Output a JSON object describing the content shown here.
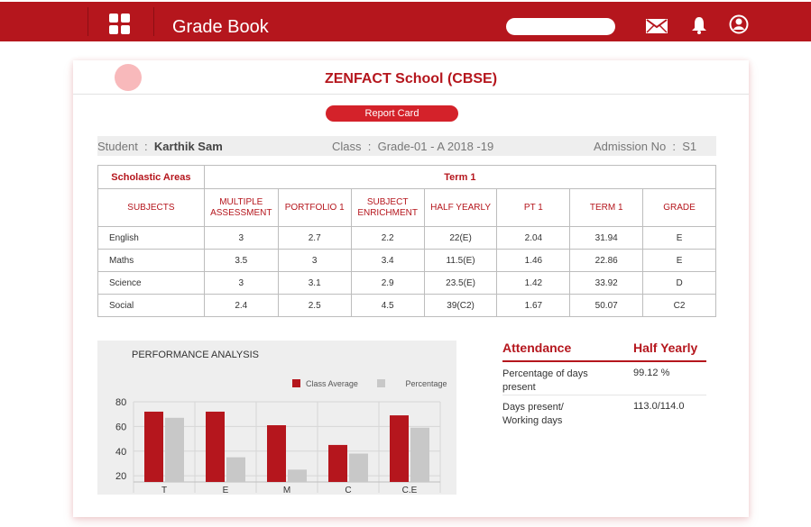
{
  "header": {
    "title": "Grade Book",
    "search_placeholder": "",
    "icons": [
      "grid-icon",
      "mail-icon",
      "bell-icon",
      "user-icon"
    ],
    "colors": {
      "brand": "#b5161d",
      "accent": "#d4222a"
    }
  },
  "school": {
    "name": "ZENFACT School (CBSE)"
  },
  "report_button": "Report Card",
  "student": {
    "student_label": "Student",
    "name": "Karthik Sam",
    "class_label": "Class",
    "class_value": "Grade-01 - A 2018 -19",
    "admission_label": "Admission No",
    "admission_value": "S1"
  },
  "table": {
    "area_label": "Scholastic Areas",
    "term_label": "Term 1",
    "columns": [
      "SUBJECTS",
      "MULTIPLE ASSESSMENT",
      "PORTFOLIO 1",
      "SUBJECT ENRICHMENT",
      "HALF YEARLY",
      "PT 1",
      "TERM 1",
      "GRADE"
    ],
    "rows": [
      [
        "English",
        "3",
        "2.7",
        "2.2",
        "22(E)",
        "2.04",
        "31.94",
        "E"
      ],
      [
        "Maths",
        "3.5",
        "3",
        "3.4",
        "11.5(E)",
        "1.46",
        "22.86",
        "E"
      ],
      [
        "Science",
        "3",
        "3.1",
        "2.9",
        "23.5(E)",
        "1.42",
        "33.92",
        "D"
      ],
      [
        "Social",
        "2.4",
        "2.5",
        "4.5",
        "39(C2)",
        "1.67",
        "50.07",
        "C2"
      ]
    ]
  },
  "chart_data": {
    "type": "bar",
    "title": "PERFORMANCE ANALYSIS",
    "categories": [
      "T",
      "E",
      "M",
      "C",
      "C.E"
    ],
    "series": [
      {
        "name": "Class Average",
        "values": [
          72,
          72,
          61,
          45,
          69
        ],
        "color": "#b5161d"
      },
      {
        "name": "Percentage",
        "values": [
          67,
          35,
          25,
          38,
          59
        ],
        "color": "#c8c8c8"
      }
    ],
    "yticks": [
      20,
      40,
      60,
      80
    ],
    "ylim": [
      15,
      80
    ],
    "legend": "top-right",
    "grid": true
  },
  "attendance": {
    "title": "Attendance",
    "period": "Half Yearly",
    "rows": [
      {
        "label": "Percentage of days present",
        "value": "99.12 %"
      },
      {
        "label": "Days present/ Working days",
        "value": "113.0/114.0"
      }
    ]
  }
}
